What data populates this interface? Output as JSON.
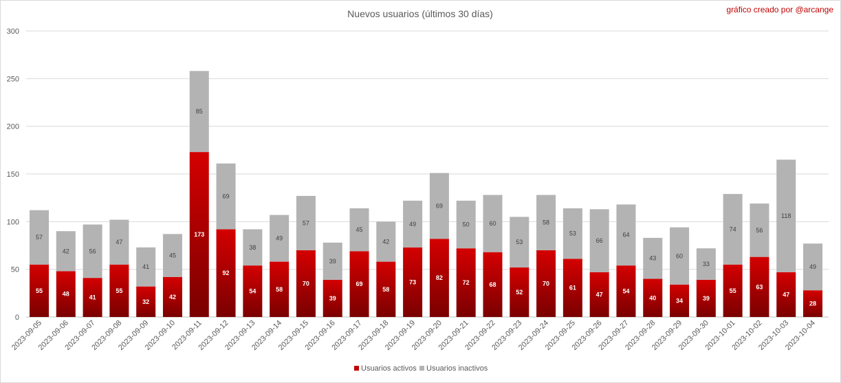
{
  "chart_data": {
    "type": "bar",
    "stacked": true,
    "title": "Nuevos usuarios (últimos 30 días)",
    "credit": "gráfico creado por @arcange",
    "xlabel": "",
    "ylabel": "",
    "ylim": [
      0,
      300
    ],
    "yticks": [
      0,
      50,
      100,
      150,
      200,
      250,
      300
    ],
    "grid": true,
    "legend_position": "bottom",
    "categories": [
      "2023-09-05",
      "2023-09-06",
      "2023-09-07",
      "2023-09-08",
      "2023-09-09",
      "2023-09-10",
      "2023-09-11",
      "2023-09-12",
      "2023-09-13",
      "2023-09-14",
      "2023-09-15",
      "2023-09-16",
      "2023-09-17",
      "2023-09-18",
      "2023-09-19",
      "2023-09-20",
      "2023-09-21",
      "2023-09-22",
      "2023-09-23",
      "2023-09-24",
      "2023-09-25",
      "2023-09-26",
      "2023-09-27",
      "2023-09-28",
      "2023-09-29",
      "2023-09-30",
      "2023-10-01",
      "2023-10-02",
      "2023-10-03",
      "2023-10-04"
    ],
    "series": [
      {
        "name": "Usuarios activos",
        "color": "#c00000",
        "values": [
          55,
          48,
          41,
          55,
          32,
          42,
          173,
          92,
          54,
          58,
          70,
          39,
          69,
          58,
          73,
          82,
          72,
          68,
          52,
          70,
          61,
          47,
          54,
          40,
          34,
          39,
          55,
          63,
          47,
          28
        ]
      },
      {
        "name": "Usuarios inactivos",
        "color": "#b3b3b3",
        "values": [
          57,
          42,
          56,
          47,
          41,
          45,
          85,
          69,
          38,
          49,
          57,
          39,
          45,
          42,
          49,
          69,
          50,
          60,
          53,
          58,
          53,
          66,
          64,
          43,
          60,
          33,
          74,
          56,
          118,
          49
        ]
      }
    ]
  }
}
